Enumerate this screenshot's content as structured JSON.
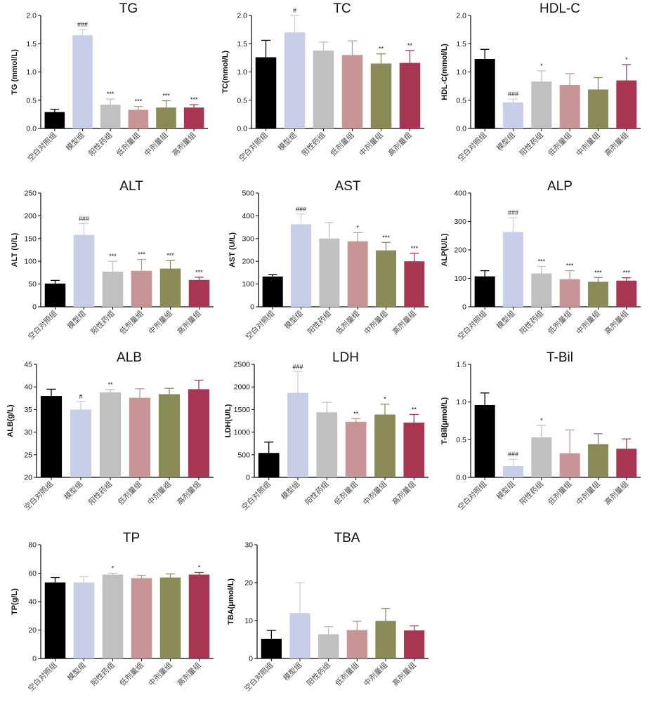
{
  "categories": [
    "空白对照组",
    "模型组",
    "阳性药组",
    "低剂量组",
    "中剂量组",
    "高剂量组"
  ],
  "colors": [
    "#000000",
    "#c8cde8",
    "#c0c0c0",
    "#c79595",
    "#8b8b58",
    "#a83551"
  ],
  "chart_data": [
    {
      "type": "bar",
      "title": "TG",
      "ylabel": "TG (mmol/L)",
      "ylim": [
        0,
        2.0
      ],
      "yticks": [
        "0.0",
        "0.5",
        "1.0",
        "1.5",
        "2.0"
      ],
      "values": [
        0.29,
        1.65,
        0.42,
        0.33,
        0.37,
        0.37
      ],
      "errors": [
        0.05,
        0.1,
        0.1,
        0.06,
        0.12,
        0.05
      ],
      "annotations": [
        "",
        "###",
        "***",
        "***",
        "***",
        "***"
      ]
    },
    {
      "type": "bar",
      "title": "TC",
      "ylabel": "TC(mmol/L)",
      "ylim": [
        0,
        2.0
      ],
      "yticks": [
        "0.0",
        "0.5",
        "1.0",
        "1.5",
        "2.0"
      ],
      "values": [
        1.26,
        1.7,
        1.38,
        1.3,
        1.15,
        1.16
      ],
      "errors": [
        0.3,
        0.3,
        0.15,
        0.25,
        0.17,
        0.22
      ],
      "annotations": [
        "",
        "#",
        "",
        "",
        "**",
        "**"
      ]
    },
    {
      "type": "bar",
      "title": "HDL-C",
      "ylabel": "HDL-C(mmol/L)",
      "ylim": [
        0,
        2.0
      ],
      "yticks": [
        "0.0",
        "0.5",
        "1.0",
        "1.5",
        "2.0"
      ],
      "values": [
        1.23,
        0.46,
        0.83,
        0.77,
        0.69,
        0.85
      ],
      "errors": [
        0.17,
        0.06,
        0.19,
        0.2,
        0.21,
        0.28
      ],
      "annotations": [
        "",
        "###",
        "*",
        "",
        "",
        "*"
      ]
    },
    {
      "type": "bar",
      "title": "ALT",
      "ylabel": "ALT (U/L)",
      "ylim": [
        0,
        250
      ],
      "yticks": [
        "0",
        "50",
        "100",
        "150",
        "200",
        "250"
      ],
      "values": [
        51,
        158,
        77,
        79,
        84,
        59
      ],
      "errors": [
        7,
        25,
        23,
        25,
        18,
        6
      ],
      "annotations": [
        "",
        "###",
        "***",
        "***",
        "***",
        "***"
      ]
    },
    {
      "type": "bar",
      "title": "AST",
      "ylabel": "AST (U/L)",
      "ylim": [
        0,
        500
      ],
      "yticks": [
        "0",
        "100",
        "200",
        "300",
        "400",
        "500"
      ],
      "values": [
        133,
        363,
        300,
        288,
        248,
        200
      ],
      "errors": [
        8,
        45,
        70,
        38,
        35,
        35
      ],
      "annotations": [
        "",
        "###",
        "",
        "*",
        "***",
        "***"
      ]
    },
    {
      "type": "bar",
      "title": "ALP",
      "ylabel": "ALP(U/L)",
      "ylim": [
        0,
        400
      ],
      "yticks": [
        "0",
        "100",
        "200",
        "300",
        "400"
      ],
      "values": [
        107,
        263,
        117,
        97,
        88,
        92
      ],
      "errors": [
        20,
        50,
        25,
        30,
        15,
        10
      ],
      "annotations": [
        "",
        "###",
        "***",
        "***",
        "***",
        "***"
      ]
    },
    {
      "type": "bar",
      "title": "ALB",
      "ylabel": "ALB(g/L)",
      "ylim": [
        20,
        45
      ],
      "yticks": [
        "20",
        "25",
        "30",
        "35",
        "40",
        "45"
      ],
      "values": [
        38.0,
        35.0,
        38.8,
        37.6,
        38.4,
        39.5
      ],
      "errors": [
        1.5,
        1.8,
        0.6,
        2.0,
        1.3,
        2.0
      ],
      "annotations": [
        "",
        "#",
        "**",
        "",
        "",
        ""
      ]
    },
    {
      "type": "bar",
      "title": "LDH",
      "ylabel": "LDH(U/L)",
      "ylim": [
        0,
        2500
      ],
      "yticks": [
        "0",
        "500",
        "1000",
        "1500",
        "2000",
        "2500"
      ],
      "values": [
        540,
        1870,
        1440,
        1230,
        1390,
        1210
      ],
      "errors": [
        240,
        470,
        220,
        70,
        230,
        180
      ],
      "annotations": [
        "",
        "###",
        "",
        "**",
        "*",
        "**"
      ]
    },
    {
      "type": "bar",
      "title": "T-Bil",
      "ylabel": "T-Bil(μmol/L)",
      "ylim": [
        0,
        1.5
      ],
      "yticks": [
        "0.0",
        "0.5",
        "1.0",
        "1.5"
      ],
      "values": [
        0.96,
        0.15,
        0.53,
        0.32,
        0.44,
        0.38
      ],
      "errors": [
        0.16,
        0.09,
        0.16,
        0.31,
        0.14,
        0.13
      ],
      "annotations": [
        "",
        "###",
        "*",
        "",
        "",
        ""
      ]
    },
    {
      "type": "bar",
      "title": "TP",
      "ylabel": "TP(g/L)",
      "ylim": [
        0,
        80
      ],
      "yticks": [
        "0",
        "20",
        "40",
        "60",
        "80"
      ],
      "values": [
        53.5,
        53.5,
        59.0,
        56.5,
        57.0,
        59.0
      ],
      "errors": [
        3.5,
        4.0,
        1.0,
        2.0,
        2.5,
        1.5
      ],
      "annotations": [
        "",
        "",
        "*",
        "",
        "",
        "*"
      ]
    },
    {
      "type": "bar",
      "title": "TBA",
      "ylabel": "TBA(μmol/L)",
      "ylim": [
        0,
        30
      ],
      "yticks": [
        "0",
        "10",
        "20",
        "30"
      ],
      "values": [
        5.2,
        12.0,
        6.4,
        7.5,
        9.9,
        7.4
      ],
      "errors": [
        2.2,
        8.0,
        2.0,
        2.3,
        3.3,
        1.2
      ],
      "annotations": [
        "",
        "",
        "",
        "",
        "",
        ""
      ]
    }
  ]
}
